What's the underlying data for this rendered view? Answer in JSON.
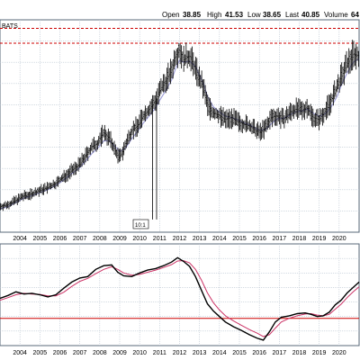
{
  "header": {
    "open_label": "Open",
    "open_value": "38.85",
    "high_label": "High",
    "high_value": "41.53",
    "low_label": "Low",
    "low_value": "38.65",
    "last_label": "Last",
    "last_value": "40.85",
    "volume_label": "Volume",
    "volume_value": "64"
  },
  "source_label": "BATS",
  "annotation_label": "10:1",
  "colors": {
    "background": "#ffffff",
    "grid": "#b8c4d0",
    "border": "#5a6a7a",
    "price_bars": "#000000",
    "moving_average": "#a0a0d8",
    "resistance_line": "#cc0000",
    "indicator_line": "#000000",
    "signal_line": "#cc3366",
    "zero_line": "#cc0000"
  },
  "chart_data": [
    {
      "type": "line",
      "title": "",
      "x_tick_labels": [
        "2004",
        "2005",
        "2006",
        "2007",
        "2008",
        "2009",
        "2010",
        "2011",
        "2012",
        "2013",
        "2014",
        "2015",
        "2016",
        "2017",
        "2018",
        "2019",
        "2020"
      ],
      "xlim": [
        2003.0,
        2021.0
      ],
      "ylim": [
        0,
        50
      ],
      "grid": true,
      "reference_lines": [
        44.5,
        48.0
      ],
      "series": [
        {
          "values": [
            [
              2003.0,
              6.0
            ],
            [
              2003.4,
              6.5
            ],
            [
              2003.8,
              7.5
            ],
            [
              2004.2,
              8.5
            ],
            [
              2004.6,
              9.0
            ],
            [
              2005.0,
              9.8
            ],
            [
              2005.4,
              10.5
            ],
            [
              2005.8,
              11.5
            ],
            [
              2006.2,
              13.0
            ],
            [
              2006.6,
              14.5
            ],
            [
              2007.0,
              16.0
            ],
            [
              2007.3,
              18.0
            ],
            [
              2007.6,
              20.0
            ],
            [
              2007.9,
              21.0
            ],
            [
              2008.2,
              23.5
            ],
            [
              2008.5,
              22.0
            ],
            [
              2008.8,
              19.0
            ],
            [
              2009.0,
              17.5
            ],
            [
              2009.3,
              20.5
            ],
            [
              2009.6,
              24.0
            ],
            [
              2009.9,
              25.0
            ],
            [
              2010.2,
              27.5
            ],
            [
              2010.5,
              29.0
            ],
            [
              2010.8,
              31.0
            ],
            [
              2011.0,
              33.0
            ],
            [
              2011.3,
              35.5
            ],
            [
              2011.6,
              38.0
            ],
            [
              2011.8,
              41.5
            ],
            [
              2012.0,
              43.0
            ],
            [
              2012.2,
              40.5
            ],
            [
              2012.5,
              41.5
            ],
            [
              2012.8,
              38.5
            ],
            [
              2013.0,
              36.0
            ],
            [
              2013.2,
              34.0
            ],
            [
              2013.4,
              30.0
            ],
            [
              2013.7,
              28.0
            ],
            [
              2014.0,
              27.5
            ],
            [
              2014.3,
              26.5
            ],
            [
              2014.6,
              27.0
            ],
            [
              2014.9,
              26.0
            ],
            [
              2015.2,
              25.5
            ],
            [
              2015.5,
              25.0
            ],
            [
              2015.8,
              24.0
            ],
            [
              2016.0,
              23.5
            ],
            [
              2016.3,
              24.5
            ],
            [
              2016.6,
              27.0
            ],
            [
              2016.9,
              27.5
            ],
            [
              2017.2,
              26.5
            ],
            [
              2017.5,
              28.0
            ],
            [
              2017.8,
              29.0
            ],
            [
              2018.1,
              28.5
            ],
            [
              2018.4,
              29.5
            ],
            [
              2018.7,
              27.0
            ],
            [
              2019.0,
              26.5
            ],
            [
              2019.3,
              28.5
            ],
            [
              2019.6,
              31.0
            ],
            [
              2019.9,
              34.0
            ],
            [
              2020.1,
              36.5
            ],
            [
              2020.4,
              39.5
            ],
            [
              2020.7,
              42.0
            ],
            [
              2021.0,
              41.5
            ]
          ],
          "spikes": [
            {
              "x": 2010.65,
              "low": 3.0
            },
            {
              "x": 2010.85,
              "low": 3.0
            }
          ]
        },
        {
          "values": [
            [
              2003.0,
              5.5
            ],
            [
              2003.4,
              6.0
            ],
            [
              2003.8,
              7.0
            ],
            [
              2004.2,
              8.0
            ],
            [
              2004.6,
              8.6
            ],
            [
              2005.0,
              9.3
            ],
            [
              2005.4,
              10.0
            ],
            [
              2005.8,
              11.0
            ],
            [
              2006.2,
              12.3
            ],
            [
              2006.6,
              13.8
            ],
            [
              2007.0,
              15.2
            ],
            [
              2007.3,
              16.8
            ],
            [
              2007.6,
              18.5
            ],
            [
              2007.9,
              19.8
            ],
            [
              2008.2,
              21.5
            ],
            [
              2008.5,
              21.5
            ],
            [
              2008.8,
              20.0
            ],
            [
              2009.0,
              19.0
            ],
            [
              2009.3,
              19.8
            ],
            [
              2009.6,
              22.0
            ],
            [
              2009.9,
              23.8
            ],
            [
              2010.2,
              25.8
            ],
            [
              2010.5,
              27.5
            ],
            [
              2010.8,
              29.3
            ],
            [
              2011.0,
              31.0
            ],
            [
              2011.3,
              33.3
            ],
            [
              2011.6,
              35.8
            ],
            [
              2011.8,
              38.5
            ],
            [
              2012.0,
              40.5
            ],
            [
              2012.2,
              40.0
            ],
            [
              2012.5,
              40.3
            ],
            [
              2012.8,
              39.0
            ],
            [
              2013.0,
              37.0
            ],
            [
              2013.2,
              35.0
            ],
            [
              2013.4,
              32.0
            ],
            [
              2013.7,
              29.5
            ],
            [
              2014.0,
              28.3
            ],
            [
              2014.3,
              27.3
            ],
            [
              2014.6,
              27.0
            ],
            [
              2014.9,
              26.5
            ],
            [
              2015.2,
              25.8
            ],
            [
              2015.5,
              25.3
            ],
            [
              2015.8,
              24.5
            ],
            [
              2016.0,
              24.0
            ],
            [
              2016.3,
              24.2
            ],
            [
              2016.6,
              25.5
            ],
            [
              2016.9,
              26.7
            ],
            [
              2017.2,
              26.8
            ],
            [
              2017.5,
              27.5
            ],
            [
              2017.8,
              28.3
            ],
            [
              2018.1,
              28.5
            ],
            [
              2018.4,
              29.0
            ],
            [
              2018.7,
              28.0
            ],
            [
              2019.0,
              27.3
            ],
            [
              2019.3,
              27.8
            ],
            [
              2019.6,
              29.5
            ],
            [
              2019.9,
              32.0
            ],
            [
              2020.1,
              34.5
            ],
            [
              2020.4,
              37.5
            ],
            [
              2020.7,
              40.0
            ],
            [
              2021.0,
              40.8
            ]
          ]
        }
      ]
    },
    {
      "type": "line",
      "title": "",
      "x_tick_labels": [
        "2004",
        "2005",
        "2006",
        "2007",
        "2008",
        "2009",
        "2010",
        "2011",
        "2012",
        "2013",
        "2014",
        "2015",
        "2016",
        "2017",
        "2018",
        "2019",
        "2020"
      ],
      "xlim": [
        2003.0,
        2021.0
      ],
      "ylim": [
        -1.2,
        1.6
      ],
      "grid": true,
      "reference_lines": [
        -0.45
      ],
      "series": [
        {
          "values": [
            [
              2003.0,
              0.1
            ],
            [
              2003.4,
              0.18
            ],
            [
              2003.8,
              0.28
            ],
            [
              2004.2,
              0.22
            ],
            [
              2004.6,
              0.24
            ],
            [
              2005.0,
              0.2
            ],
            [
              2005.4,
              0.14
            ],
            [
              2005.8,
              0.2
            ],
            [
              2006.2,
              0.38
            ],
            [
              2006.6,
              0.55
            ],
            [
              2007.0,
              0.66
            ],
            [
              2007.4,
              0.7
            ],
            [
              2007.8,
              0.9
            ],
            [
              2008.2,
              1.0
            ],
            [
              2008.6,
              1.02
            ],
            [
              2008.9,
              0.82
            ],
            [
              2009.2,
              0.72
            ],
            [
              2009.6,
              0.7
            ],
            [
              2010.0,
              0.8
            ],
            [
              2010.4,
              0.88
            ],
            [
              2010.8,
              0.92
            ],
            [
              2011.2,
              1.0
            ],
            [
              2011.6,
              1.1
            ],
            [
              2011.9,
              1.22
            ],
            [
              2012.2,
              1.12
            ],
            [
              2012.5,
              0.98
            ],
            [
              2012.8,
              0.7
            ],
            [
              2013.1,
              0.32
            ],
            [
              2013.4,
              -0.05
            ],
            [
              2013.7,
              -0.25
            ],
            [
              2014.0,
              -0.4
            ],
            [
              2014.3,
              -0.55
            ],
            [
              2014.7,
              -0.68
            ],
            [
              2015.1,
              -0.78
            ],
            [
              2015.5,
              -0.9
            ],
            [
              2015.9,
              -1.0
            ],
            [
              2016.2,
              -1.05
            ],
            [
              2016.5,
              -0.82
            ],
            [
              2016.8,
              -0.55
            ],
            [
              2017.1,
              -0.42
            ],
            [
              2017.5,
              -0.38
            ],
            [
              2017.9,
              -0.32
            ],
            [
              2018.3,
              -0.3
            ],
            [
              2018.6,
              -0.34
            ],
            [
              2018.9,
              -0.4
            ],
            [
              2019.2,
              -0.38
            ],
            [
              2019.5,
              -0.28
            ],
            [
              2019.8,
              -0.08
            ],
            [
              2020.1,
              0.05
            ],
            [
              2020.4,
              0.25
            ],
            [
              2020.7,
              0.4
            ],
            [
              2021.0,
              0.55
            ]
          ]
        },
        {
          "values": [
            [
              2003.0,
              0.05
            ],
            [
              2003.4,
              0.12
            ],
            [
              2003.8,
              0.2
            ],
            [
              2004.2,
              0.24
            ],
            [
              2004.6,
              0.22
            ],
            [
              2005.0,
              0.21
            ],
            [
              2005.4,
              0.17
            ],
            [
              2005.8,
              0.17
            ],
            [
              2006.2,
              0.27
            ],
            [
              2006.6,
              0.43
            ],
            [
              2007.0,
              0.57
            ],
            [
              2007.4,
              0.65
            ],
            [
              2007.8,
              0.78
            ],
            [
              2008.2,
              0.9
            ],
            [
              2008.6,
              0.97
            ],
            [
              2008.9,
              0.9
            ],
            [
              2009.2,
              0.8
            ],
            [
              2009.6,
              0.74
            ],
            [
              2010.0,
              0.76
            ],
            [
              2010.4,
              0.82
            ],
            [
              2010.8,
              0.88
            ],
            [
              2011.2,
              0.95
            ],
            [
              2011.6,
              1.03
            ],
            [
              2011.9,
              1.13
            ],
            [
              2012.2,
              1.14
            ],
            [
              2012.5,
              1.08
            ],
            [
              2012.8,
              0.9
            ],
            [
              2013.1,
              0.6
            ],
            [
              2013.4,
              0.25
            ],
            [
              2013.7,
              -0.02
            ],
            [
              2014.0,
              -0.22
            ],
            [
              2014.3,
              -0.38
            ],
            [
              2014.7,
              -0.52
            ],
            [
              2015.1,
              -0.64
            ],
            [
              2015.5,
              -0.76
            ],
            [
              2015.9,
              -0.86
            ],
            [
              2016.2,
              -0.95
            ],
            [
              2016.5,
              -0.9
            ],
            [
              2016.8,
              -0.72
            ],
            [
              2017.1,
              -0.55
            ],
            [
              2017.5,
              -0.45
            ],
            [
              2017.9,
              -0.38
            ],
            [
              2018.3,
              -0.33
            ],
            [
              2018.6,
              -0.32
            ],
            [
              2018.9,
              -0.36
            ],
            [
              2019.2,
              -0.38
            ],
            [
              2019.5,
              -0.34
            ],
            [
              2019.8,
              -0.2
            ],
            [
              2020.1,
              -0.06
            ],
            [
              2020.4,
              0.12
            ],
            [
              2020.7,
              0.28
            ],
            [
              2021.0,
              0.42
            ]
          ]
        }
      ]
    }
  ]
}
